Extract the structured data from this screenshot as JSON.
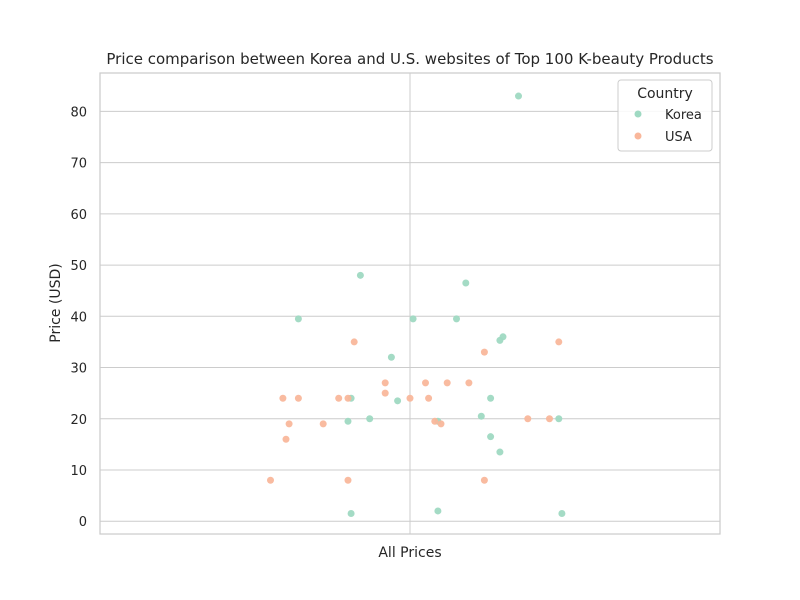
{
  "chart_data": {
    "type": "scatter",
    "subtype": "strip",
    "title": "Price comparison between Korea and U.S. websites of Top 100 K-beauty Products",
    "xlabel": "All Prices",
    "ylabel": "Price (USD)",
    "ylim": [
      -2.5,
      87.5
    ],
    "yticks": [
      0,
      10,
      20,
      30,
      40,
      50,
      60,
      70,
      80
    ],
    "grid": true,
    "legend": {
      "title": "Country",
      "position": "top-right",
      "entries": [
        "Korea",
        "USA"
      ]
    },
    "colors": {
      "Korea": "#9fd9c2",
      "USA": "#f9b79b"
    },
    "series": [
      {
        "name": "Korea",
        "jitter": [
          0.35,
          -0.36,
          0.01,
          0.15,
          -0.16,
          0.18,
          0.3,
          0.29,
          -0.06,
          -0.04,
          0.26,
          -0.19,
          -0.13,
          0.23,
          0.48,
          -0.2,
          0.09,
          0.26,
          0.29,
          -0.19,
          0.09,
          0.49
        ],
        "values": [
          83,
          39.5,
          39.5,
          39.5,
          48,
          46.5,
          36,
          35.3,
          32,
          23.5,
          24,
          24,
          20,
          20.5,
          20,
          19.5,
          19.5,
          16.5,
          13.5,
          1.5,
          2,
          1.5
        ]
      },
      {
        "name": "USA",
        "jitter": [
          -0.45,
          -0.41,
          -0.36,
          -0.39,
          -0.28,
          -0.4,
          -0.23,
          -0.18,
          -0.2,
          -0.08,
          -0.08,
          0.0,
          0.05,
          0.06,
          0.12,
          0.19,
          0.24,
          0.1,
          0.24,
          0.38,
          0.45,
          0.48,
          -0.2,
          0.08
        ],
        "values": [
          8,
          24,
          24,
          19,
          19,
          16,
          24,
          35,
          8,
          27,
          25,
          24,
          27,
          24,
          27,
          27,
          33,
          19,
          8,
          20,
          20,
          35,
          24,
          19.5
        ]
      }
    ]
  }
}
